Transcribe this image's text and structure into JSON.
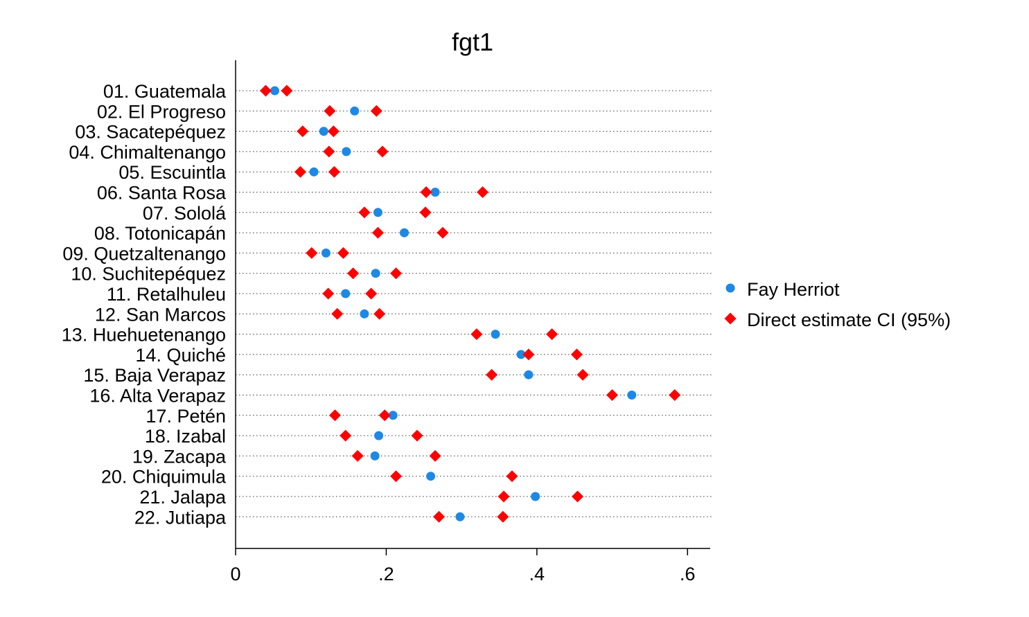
{
  "chart_data": {
    "type": "scatter",
    "title": "fgt1",
    "xlim": [
      0,
      0.63
    ],
    "xticks": [
      0,
      0.2,
      0.4,
      0.6
    ],
    "xtick_labels": [
      "0",
      ".2",
      ".4",
      ".6"
    ],
    "grid": "dotted horizontal",
    "legend_position": "right",
    "categories": [
      "01. Guatemala",
      "02. El Progreso",
      "03. Sacatepéquez",
      "04. Chimaltenango",
      "05. Escuintla",
      "06. Santa Rosa",
      "07. Sololá",
      "08. Totonicapán",
      "09. Quetzaltenango",
      "10. Suchitepéquez",
      "11. Retalhuleu",
      "12. San Marcos",
      "13. Huehuetenango",
      "14. Quiché",
      "15. Baja Verapaz",
      "16. Alta Verapaz",
      "17. Petén",
      "18. Izabal",
      "19. Zacapa",
      "20. Chiquimula",
      "21. Jalapa",
      "22. Jutiapa"
    ],
    "series": [
      {
        "name": "Fay Herriot",
        "marker": "circle",
        "color": "#1e88e5",
        "values": [
          0.052,
          0.158,
          0.117,
          0.147,
          0.104,
          0.265,
          0.189,
          0.224,
          0.12,
          0.186,
          0.146,
          0.171,
          0.345,
          0.379,
          0.389,
          0.526,
          0.209,
          0.19,
          0.185,
          0.259,
          0.398,
          0.298
        ]
      },
      {
        "name": "Direct estimate CI (95%)",
        "marker": "diamond",
        "color": "#ff0000",
        "values_low": [
          0.04,
          0.125,
          0.089,
          0.124,
          0.086,
          0.253,
          0.171,
          0.189,
          0.101,
          0.156,
          0.123,
          0.135,
          0.32,
          0.389,
          0.34,
          0.5,
          0.132,
          0.146,
          0.162,
          0.213,
          0.356,
          0.27
        ],
        "values_high": [
          0.068,
          0.187,
          0.13,
          0.195,
          0.131,
          0.328,
          0.252,
          0.275,
          0.143,
          0.213,
          0.18,
          0.191,
          0.42,
          0.453,
          0.461,
          0.583,
          0.198,
          0.241,
          0.265,
          0.367,
          0.454,
          0.355
        ]
      }
    ]
  }
}
